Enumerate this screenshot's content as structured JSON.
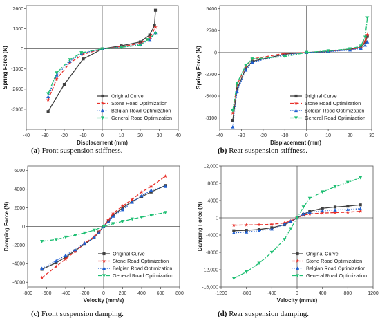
{
  "figure": {
    "captions": [
      {
        "label": "(a)",
        "text": " Front suspension stiffness."
      },
      {
        "label": "(b)",
        "text": " Rear suspension stiffness."
      },
      {
        "label": "(c)",
        "text": " Front suspension damping."
      },
      {
        "label": "(d)",
        "text": " Rear suspension damping."
      }
    ]
  },
  "series_styles": [
    {
      "name": "Original Curve",
      "color": "#404040",
      "dash": "none",
      "marker": "square"
    },
    {
      "name": "Stone Road Optimization",
      "color": "#e8302a",
      "dash": "dash",
      "marker": "star"
    },
    {
      "name": "Belgian Road Optimization",
      "color": "#1f5fd1",
      "dash": "dot",
      "marker": "triangle"
    },
    {
      "name": "General Road Optimization",
      "color": "#1fbf73",
      "dash": "dashdot",
      "marker": "tri-down"
    }
  ],
  "chart_data": [
    {
      "type": "line",
      "xlabel": "Displacement (mm)",
      "ylabel": "Spring Force (N)",
      "xlim": [
        -40,
        40
      ],
      "ylim": [
        -5200,
        2800
      ],
      "xticks": [
        -40,
        -30,
        -20,
        -10,
        0,
        10,
        20,
        30,
        40
      ],
      "yticks": [
        -3900,
        -2600,
        -1300,
        0,
        1300,
        2600
      ],
      "ytick_labels": [
        "-3900",
        "-2600",
        "-1300",
        "0",
        "1300",
        "2600"
      ],
      "legend": "bottom-right",
      "series": [
        {
          "name": "Original Curve",
          "x": [
            -28.5,
            -20,
            -10,
            0,
            10,
            20,
            25,
            27.5,
            28
          ],
          "y": [
            -4050,
            -2300,
            -650,
            0,
            200,
            450,
            900,
            1500,
            2500
          ]
        },
        {
          "name": "Stone Road Optimization",
          "x": [
            -28.5,
            -24,
            -17,
            -10,
            0,
            10,
            20,
            25,
            28
          ],
          "y": [
            -3300,
            -1950,
            -900,
            -350,
            0,
            150,
            350,
            700,
            1400
          ]
        },
        {
          "name": "Belgian Road Optimization",
          "x": [
            -28.5,
            -24,
            -17,
            -11,
            0,
            10,
            20,
            25,
            28
          ],
          "y": [
            -3100,
            -1700,
            -800,
            -300,
            0,
            130,
            300,
            550,
            1050
          ]
        },
        {
          "name": "General Road Optimization",
          "x": [
            -28.5,
            -24,
            -17,
            -11,
            0,
            10,
            20,
            24,
            28
          ],
          "y": [
            -2900,
            -1550,
            -700,
            -250,
            0,
            100,
            250,
            600,
            1000
          ]
        }
      ]
    },
    {
      "type": "line",
      "xlabel": "Displacement (mm)",
      "ylabel": "Spring Force (N)",
      "xlim": [
        -40,
        30
      ],
      "ylim": [
        -9500,
        5800
      ],
      "xticks": [
        -40,
        -30,
        -20,
        -10,
        0,
        10,
        20,
        30
      ],
      "yticks": [
        -8100,
        -5400,
        -2700,
        0,
        2700,
        5400
      ],
      "ytick_labels": [
        "-8100",
        "-5400",
        "-2700",
        "0",
        "2700",
        "5400"
      ],
      "legend": "bottom-right",
      "series": [
        {
          "name": "Original Curve",
          "x": [
            -34,
            -32,
            -28,
            -25,
            -10,
            0,
            10,
            20,
            25,
            27,
            28
          ],
          "y": [
            -8400,
            -4500,
            -2000,
            -1100,
            -200,
            0,
            150,
            400,
            650,
            1200,
            2000
          ]
        },
        {
          "name": "Stone Road Optimization",
          "x": [
            -34,
            -32,
            -28,
            -25,
            -10,
            0,
            10,
            20,
            25,
            27,
            28
          ],
          "y": [
            -7500,
            -4000,
            -1700,
            -800,
            -100,
            0,
            150,
            350,
            600,
            1400,
            2200
          ]
        },
        {
          "name": "Belgian Road Optimization",
          "x": [
            -34,
            -32,
            -28,
            -25,
            -10,
            0,
            10,
            20,
            25,
            27,
            28
          ],
          "y": [
            -9200,
            -4800,
            -2200,
            -1200,
            -300,
            0,
            100,
            300,
            500,
            900,
            1300
          ]
        },
        {
          "name": "General Road Optimization",
          "x": [
            -34,
            -32,
            -28,
            -25,
            -10,
            0,
            10,
            20,
            25,
            27,
            28
          ],
          "y": [
            -7200,
            -3800,
            -1600,
            -800,
            -500,
            0,
            200,
            450,
            800,
            1900,
            4300
          ]
        }
      ]
    },
    {
      "type": "line",
      "xlabel": "Velocity (mm/s)",
      "ylabel": "Damping Force (N)",
      "xlim": [
        -800,
        800
      ],
      "ylim": [
        -6500,
        6500
      ],
      "xticks": [
        -800,
        -600,
        -400,
        -200,
        0,
        200,
        400,
        600,
        800
      ],
      "yticks": [
        -6000,
        -4000,
        -2000,
        0,
        2000,
        4000,
        6000
      ],
      "ytick_labels": [
        "-6000",
        "-4000",
        "-2000",
        "0",
        "2000",
        "4000",
        "6000"
      ],
      "legend": "bottom-right",
      "series": [
        {
          "name": "Original Curve",
          "x": [
            -650,
            -500,
            -400,
            -300,
            -200,
            -100,
            -50,
            0,
            50,
            100,
            200,
            300,
            400,
            500,
            650
          ],
          "y": [
            -4600,
            -3900,
            -3300,
            -2600,
            -1900,
            -1200,
            -600,
            0,
            600,
            1200,
            2000,
            2700,
            3200,
            3700,
            4400
          ]
        },
        {
          "name": "Stone Road Optimization",
          "x": [
            -650,
            -500,
            -400,
            -300,
            -200,
            -100,
            -50,
            0,
            50,
            100,
            200,
            300,
            400,
            500,
            650
          ],
          "y": [
            -5500,
            -4300,
            -3500,
            -2700,
            -1800,
            -1100,
            -600,
            0,
            700,
            1400,
            2200,
            2900,
            3700,
            4300,
            5400
          ]
        },
        {
          "name": "Belgian Road Optimization",
          "x": [
            -650,
            -500,
            -400,
            -300,
            -200,
            -100,
            -50,
            0,
            50,
            100,
            200,
            300,
            400,
            500,
            650
          ],
          "y": [
            -4500,
            -3700,
            -3100,
            -2500,
            -1800,
            -1200,
            -700,
            0,
            500,
            1100,
            1800,
            2600,
            3300,
            3900,
            4300
          ]
        },
        {
          "name": "General Road Optimization",
          "x": [
            -650,
            -500,
            -400,
            -300,
            -200,
            -100,
            0,
            100,
            200,
            300,
            400,
            500,
            650
          ],
          "y": [
            -1600,
            -1400,
            -1150,
            -950,
            -700,
            -400,
            0,
            300,
            550,
            800,
            1000,
            1200,
            1500
          ]
        }
      ]
    },
    {
      "type": "line",
      "xlabel": "Velocity (mm/s)",
      "ylabel": "Damping Force (N)",
      "xlim": [
        -1200,
        1200
      ],
      "ylim": [
        -16000,
        12000
      ],
      "xticks": [
        -1200,
        -800,
        -400,
        0,
        400,
        800,
        1200
      ],
      "yticks": [
        -16000,
        -12000,
        -8000,
        -4000,
        0,
        4000,
        8000,
        12000
      ],
      "ytick_labels": [
        "-16,000",
        "-12,000",
        "-8000",
        "-4000",
        "0",
        "4000",
        "8000",
        "12,000"
      ],
      "legend": "bottom-right",
      "series": [
        {
          "name": "Original Curve",
          "x": [
            -1000,
            -800,
            -600,
            -400,
            -200,
            -100,
            0,
            100,
            200,
            400,
            600,
            800,
            1000
          ],
          "y": [
            -3000,
            -2900,
            -2700,
            -2300,
            -1600,
            -900,
            0,
            800,
            1500,
            2200,
            2500,
            2700,
            3000
          ]
        },
        {
          "name": "Stone Road Optimization",
          "x": [
            -1000,
            -800,
            -600,
            -400,
            -200,
            -100,
            0,
            100,
            200,
            400,
            600,
            800,
            1000
          ],
          "y": [
            -1700,
            -1650,
            -1600,
            -1500,
            -1200,
            -700,
            0,
            600,
            900,
            1100,
            1200,
            1300,
            1500
          ]
        },
        {
          "name": "Belgian Road Optimization",
          "x": [
            -1000,
            -800,
            -600,
            -400,
            -200,
            -100,
            0,
            100,
            200,
            400,
            600,
            800,
            1000
          ],
          "y": [
            -3500,
            -3300,
            -3000,
            -2600,
            -1500,
            -800,
            0,
            900,
            1300,
            1600,
            1800,
            1950,
            2100
          ]
        },
        {
          "name": "General Road Optimization",
          "x": [
            -1000,
            -800,
            -600,
            -400,
            -200,
            -100,
            0,
            100,
            200,
            400,
            600,
            800,
            1000
          ],
          "y": [
            -14000,
            -12500,
            -10500,
            -8000,
            -5000,
            -2500,
            0,
            2500,
            4500,
            6000,
            7200,
            8200,
            9300
          ]
        }
      ]
    }
  ]
}
